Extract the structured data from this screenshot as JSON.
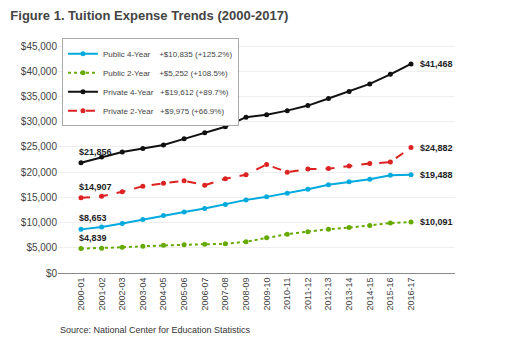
{
  "chart_data": {
    "type": "line",
    "title": "Figure 1. Tuition Expense Trends (2000-2017)",
    "categories": [
      "2000-01",
      "2001-02",
      "2002-03",
      "2003-04",
      "2004-05",
      "2005-06",
      "2006-07",
      "2007-08",
      "2008-09",
      "2009-10",
      "2010-11",
      "2011-12",
      "2012-13",
      "2013-14",
      "2014-15",
      "2015-16",
      "2016-17"
    ],
    "series": [
      {
        "name": "Public 4-Year    +$10,835 (+125.2%)",
        "color": "#00aadd",
        "line_style": "solid",
        "marker": "circle",
        "values": [
          8653,
          9100,
          9800,
          10600,
          11400,
          12100,
          12800,
          13600,
          14500,
          15100,
          15800,
          16600,
          17500,
          18100,
          18600,
          19400,
          19488
        ]
      },
      {
        "name": "Public 2-Year    +$5,252 (+108.5%)",
        "color": "#66aa00",
        "line_style": "dotted",
        "marker": "circle",
        "values": [
          4839,
          4900,
          5100,
          5300,
          5500,
          5600,
          5700,
          5800,
          6200,
          7000,
          7700,
          8200,
          8700,
          9000,
          9400,
          9900,
          10091
        ]
      },
      {
        "name": "Private 4-Year   +$19,612 (+89.7%)",
        "color": "#111111",
        "line_style": "solid",
        "marker": "circle",
        "values": [
          21856,
          23000,
          24000,
          24700,
          25400,
          26600,
          27800,
          29000,
          30900,
          31400,
          32200,
          33200,
          34600,
          36000,
          37500,
          39400,
          41468
        ]
      },
      {
        "name": "Private 2-Year   +$9,975 (+66.9%)",
        "color": "#dd2222",
        "line_style": "dashed",
        "marker": "circle",
        "values": [
          14907,
          15200,
          16100,
          17200,
          17800,
          18300,
          17400,
          18700,
          19500,
          21500,
          20000,
          20600,
          20700,
          21200,
          21700,
          22000,
          24882
        ]
      }
    ],
    "ylim": [
      0,
      47000
    ],
    "yticks": [
      {
        "value": 0,
        "label": "$0"
      },
      {
        "value": 5000,
        "label": "$5,000"
      },
      {
        "value": 10000,
        "label": "$10,000"
      },
      {
        "value": 15000,
        "label": "$15,000"
      },
      {
        "value": 20000,
        "label": "$20,000"
      },
      {
        "value": 25000,
        "label": "$25,000"
      },
      {
        "value": 30000,
        "label": "$30,000"
      },
      {
        "value": 35000,
        "label": "$35,000"
      },
      {
        "value": 40000,
        "label": "$40,000"
      },
      {
        "value": 45000,
        "label": "$45,000"
      }
    ],
    "grid": true,
    "legend": "upper left",
    "annotations": [
      {
        "text": "$21,856",
        "x": "2000-01",
        "y": 21856
      },
      {
        "text": "$14,907",
        "x": "2000-01",
        "y": 14907
      },
      {
        "text": "$8,653",
        "x": "2000-01",
        "y": 8653
      },
      {
        "text": "$4,839",
        "x": "2000-01",
        "y": 4839
      },
      {
        "text": "$41,468",
        "x": "2016-17",
        "y": 41468
      },
      {
        "text": "$24,882",
        "x": "2016-17",
        "y": 24882
      },
      {
        "text": "$19,488",
        "x": "2016-17",
        "y": 19488
      },
      {
        "text": "$10,091",
        "x": "2016-17",
        "y": 10091
      },
      {
        "text": "Source: National Center for Education Statistics"
      }
    ]
  }
}
